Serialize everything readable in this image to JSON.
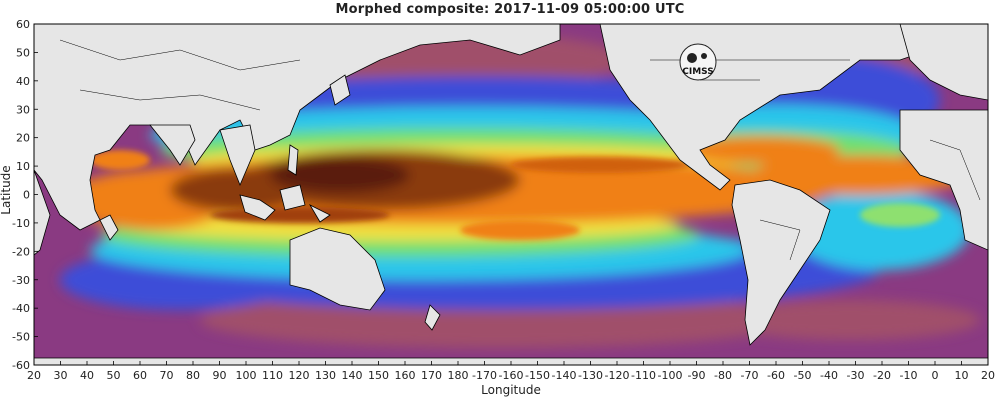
{
  "title": "Morphed composite: 2017-11-09 05:00:00 UTC",
  "xlabel": "Longitude",
  "ylabel": "Latitude",
  "logo_text": "CIMSS",
  "x_ticks": [
    "20",
    "30",
    "40",
    "50",
    "60",
    "70",
    "80",
    "90",
    "100",
    "110",
    "120",
    "130",
    "140",
    "150",
    "160",
    "170",
    "180",
    "-170",
    "-160",
    "-150",
    "-140",
    "-130",
    "-120",
    "-110",
    "-100",
    "-90",
    "-80",
    "-70",
    "-60",
    "-50",
    "-40",
    "-30",
    "-20",
    "-10",
    "0",
    "10",
    "20"
  ],
  "y_ticks": [
    "60",
    "50",
    "40",
    "30",
    "20",
    "10",
    "0",
    "-10",
    "-20",
    "-30",
    "-40",
    "-50",
    "-60"
  ],
  "colors": {
    "land": "#e6e6e6",
    "dry": "#7a2a8a",
    "dry2": "#a04a6a",
    "mid_blue": "#3a5ae0",
    "cyan": "#30c8e8",
    "green": "#6ee06a",
    "yellow": "#f0e040",
    "orange": "#f08010",
    "brown": "#8a3a10",
    "dark": "#5a1a08"
  }
}
